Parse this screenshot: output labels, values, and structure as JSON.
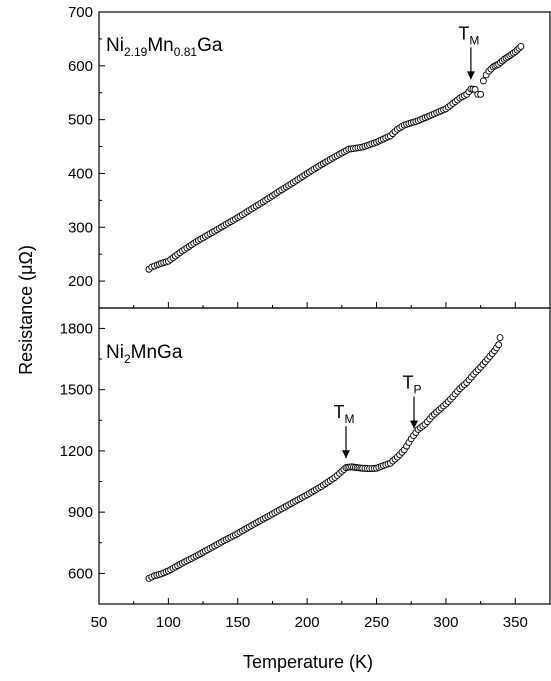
{
  "chart_data": {
    "type": "scatter",
    "xlabel": "Temperature (K)",
    "ylabel": "Resistance (μΩ)",
    "xlim": [
      50,
      375
    ],
    "xticks": [
      50,
      100,
      150,
      200,
      250,
      300,
      350
    ],
    "marker": "open-circle",
    "panels": [
      {
        "label_main": "Ni",
        "label_sub1": "2.19",
        "label_mid": "Mn",
        "label_sub2": "0.81",
        "label_end": "Ga",
        "ylim": [
          150,
          700
        ],
        "yticks": [
          200,
          300,
          400,
          500,
          600,
          700
        ],
        "annotations": [
          {
            "main": "T",
            "sub": "M",
            "x": 318,
            "y": 560
          }
        ],
        "series": [
          {
            "x": [
              86,
              88,
              90,
              92,
              95,
              100,
              110,
              120,
              130,
              140,
              150,
              160,
              170,
              180,
              190,
              200,
              210,
              220,
              230,
              240,
              250,
              260,
              265,
              270,
              275,
              280,
              290,
              300,
              305,
              310,
              315,
              318,
              321,
              323,
              325,
              327,
              329,
              331,
              334,
              338,
              342,
              346,
              350,
              354
            ],
            "y": [
              222,
              226,
              228,
              230,
              233,
              237,
              256,
              273,
              288,
              303,
              318,
              334,
              350,
              367,
              383,
              400,
              416,
              431,
              445,
              449,
              458,
              470,
              482,
              490,
              494,
              498,
              509,
              520,
              530,
              540,
              547,
              557,
              556,
              547,
              547,
              572,
              583,
              590,
              598,
              603,
              612,
              619,
              626,
              636
            ]
          }
        ]
      },
      {
        "label_main": "Ni",
        "label_sub1": "2",
        "label_mid": "MnGa",
        "label_sub2": "",
        "label_end": "",
        "ylim": [
          450,
          1900
        ],
        "yticks": [
          600,
          900,
          1200,
          1500,
          1800
        ],
        "annotations": [
          {
            "main": "T",
            "sub": "M",
            "x": 228,
            "y": 1125
          },
          {
            "main": "T",
            "sub": "P",
            "x": 277,
            "y": 1270
          }
        ],
        "series": [
          {
            "x": [
              86,
              88,
              90,
              95,
              100,
              110,
              120,
              130,
              140,
              150,
              160,
              170,
              180,
              190,
              200,
              210,
              220,
              225,
              228,
              232,
              236,
              240,
              245,
              250,
              255,
              260,
              265,
              270,
              275,
              280,
              285,
              290,
              295,
              300,
              305,
              310,
              315,
              320,
              325,
              330,
              335,
              338,
              339
            ],
            "y": [
              575,
              582,
              588,
              598,
              612,
              650,
              685,
              722,
              760,
              795,
              835,
              872,
              910,
              948,
              985,
              1025,
              1070,
              1100,
              1118,
              1122,
              1118,
              1115,
              1113,
              1115,
              1128,
              1140,
              1170,
              1205,
              1260,
              1305,
              1330,
              1370,
              1400,
              1430,
              1465,
              1505,
              1535,
              1575,
              1610,
              1650,
              1690,
              1720,
              1755
            ]
          }
        ]
      }
    ]
  }
}
